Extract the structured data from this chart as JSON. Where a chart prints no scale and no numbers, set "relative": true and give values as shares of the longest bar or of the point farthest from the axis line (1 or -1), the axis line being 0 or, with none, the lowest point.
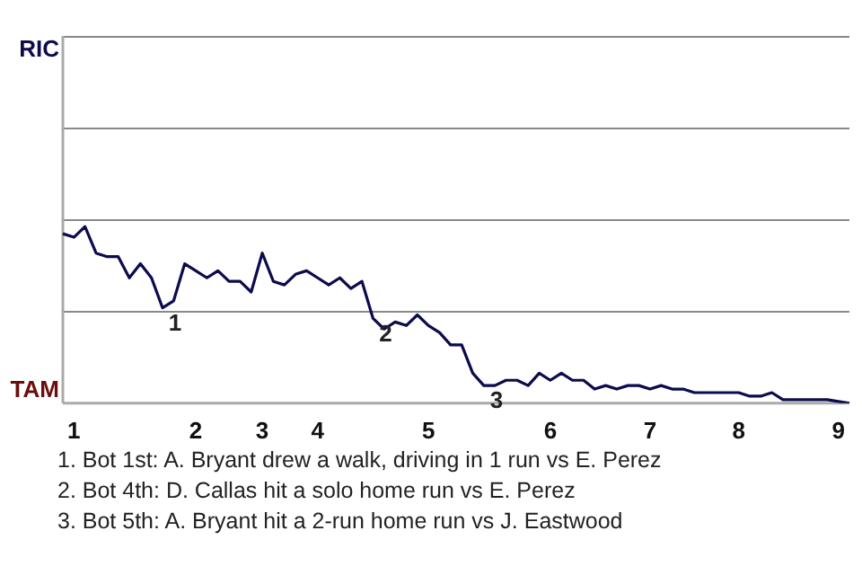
{
  "chart_data": {
    "type": "line",
    "relative": true,
    "legend": false,
    "marker": "none",
    "line_style": "solid",
    "categories": [
      null,
      "1",
      null,
      null,
      null,
      null,
      null,
      null,
      null,
      null,
      null,
      null,
      "2",
      null,
      null,
      null,
      null,
      null,
      "3",
      null,
      null,
      null,
      null,
      "4",
      null,
      null,
      null,
      null,
      null,
      null,
      null,
      null,
      null,
      "5",
      null,
      null,
      null,
      null,
      null,
      null,
      null,
      null,
      null,
      null,
      "6",
      null,
      null,
      null,
      null,
      null,
      null,
      null,
      null,
      "7",
      null,
      null,
      null,
      null,
      null,
      null,
      null,
      "8",
      null,
      null,
      null,
      null,
      null,
      null,
      null,
      null,
      "9",
      null
    ],
    "series": [
      {
        "values": [
          0.96,
          0.94,
          1,
          0.85,
          0.83,
          0.83,
          0.71,
          0.79,
          0.71,
          0.54,
          0.58,
          0.79,
          0.75,
          0.71,
          0.75,
          0.69,
          0.69,
          0.63,
          0.85,
          0.69,
          0.67,
          0.73,
          0.75,
          0.71,
          0.67,
          0.71,
          0.65,
          0.69,
          0.48,
          0.42,
          0.46,
          0.44,
          0.5,
          0.44,
          0.4,
          0.33,
          0.33,
          0.17,
          0.1,
          0.1,
          0.13,
          0.13,
          0.1,
          0.17,
          0.13,
          0.17,
          0.13,
          0.13,
          0.08,
          0.1,
          0.08,
          0.1,
          0.1,
          0.08,
          0.1,
          0.08,
          0.08,
          0.06,
          0.06,
          0.06,
          0.06,
          0.06,
          0.04,
          0.04,
          0.06,
          0.02,
          0.02,
          0.02,
          0.02,
          0.02,
          0.01,
          0
        ],
        "color": "#0b0b4d"
      }
    ],
    "ref_lines": [
      {
        "axis": "y",
        "value": 0.52,
        "color": "#888888"
      },
      {
        "axis": "y",
        "value": 1.04,
        "color": "#888888"
      },
      {
        "axis": "y",
        "value": 1.56,
        "color": "#888888"
      },
      {
        "axis": "y",
        "value": 2.08,
        "color": "#888888"
      }
    ],
    "annotations": [
      "RIC",
      "TAM",
      {
        "text": "1",
        "y": 0.54
      },
      {
        "text": "2",
        "y": 0.48
      },
      {
        "text": "3",
        "y": 0.1
      },
      "1. Bot 1st: A. Bryant drew a walk, driving in 1 run vs E. Perez",
      "2. Bot 4th: D. Callas hit a solo home run vs E. Perez",
      "3. Bot 5th: A. Bryant hit a 2-run home run vs J. Eastwood"
    ]
  }
}
